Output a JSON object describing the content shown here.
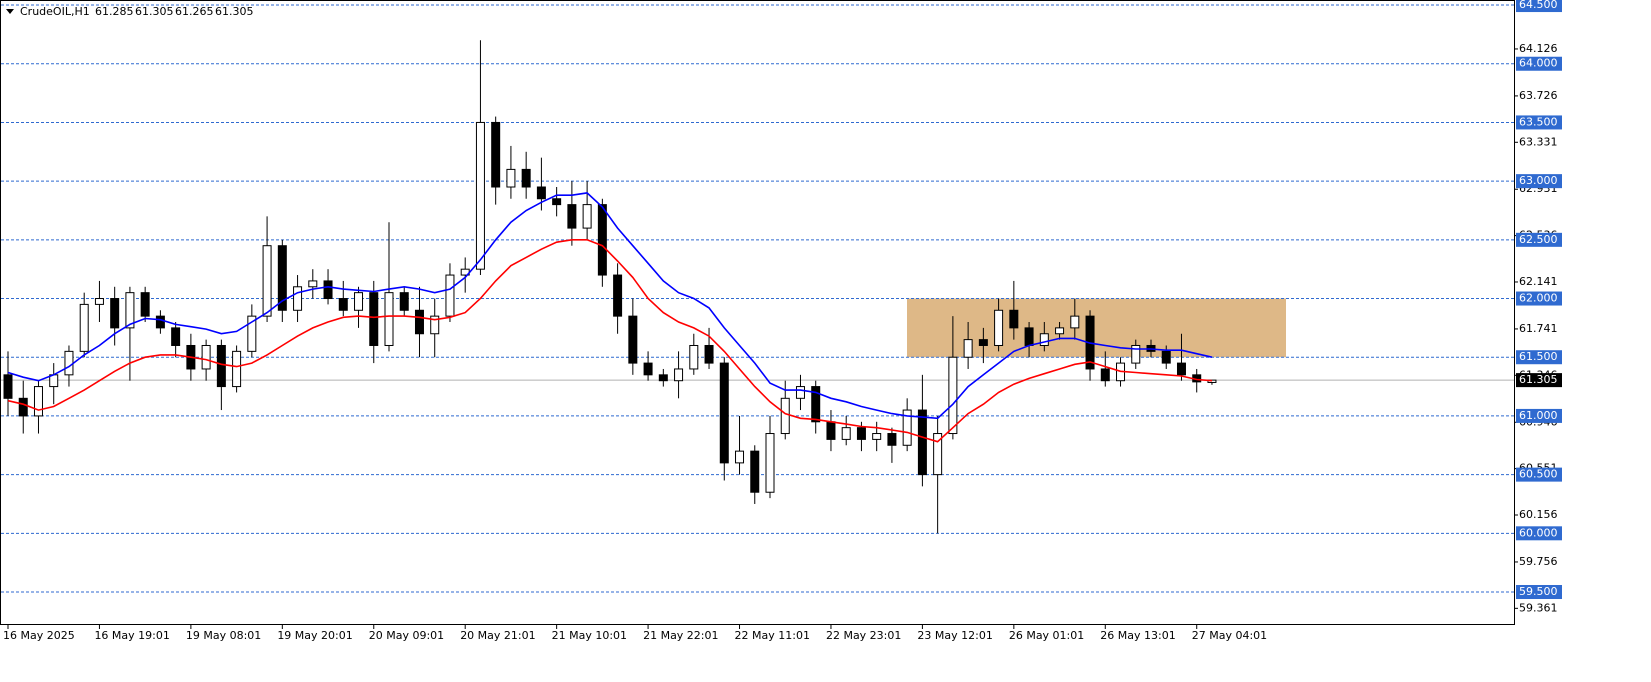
{
  "chart_data": {
    "type": "candlestick",
    "title": "CrudeOIL,H1",
    "categories": [
      "16 May 2025",
      null,
      null,
      null,
      null,
      null,
      "16 May 19:01",
      null,
      null,
      null,
      null,
      null,
      "19 May 08:01",
      null,
      null,
      null,
      null,
      null,
      "19 May 20:01",
      null,
      null,
      null,
      null,
      null,
      "20 May 09:01",
      null,
      null,
      null,
      null,
      null,
      "20 May 21:01",
      null,
      null,
      null,
      null,
      null,
      "21 May 10:01",
      null,
      null,
      null,
      null,
      null,
      "21 May 22:01",
      null,
      null,
      null,
      null,
      null,
      "22 May 11:01",
      null,
      null,
      null,
      null,
      null,
      "22 May 23:01",
      null,
      null,
      null,
      null,
      null,
      "23 May 12:01",
      null,
      null,
      null,
      null,
      null,
      "26 May 01:01",
      null,
      null,
      null,
      null,
      null,
      "26 May 13:01",
      null,
      null,
      null,
      null,
      null,
      "27 May 04:01",
      null
    ],
    "open": [
      61.35,
      61.15,
      61.0,
      61.25,
      61.35,
      61.55,
      61.95,
      62.0,
      61.75,
      62.05,
      61.85,
      61.75,
      61.6,
      61.4,
      61.6,
      61.25,
      61.55,
      61.85,
      62.45,
      61.9,
      62.1,
      62.15,
      62.0,
      61.9,
      62.05,
      61.6,
      62.05,
      61.9,
      61.7,
      61.85,
      62.2,
      62.25,
      63.5,
      62.95,
      63.1,
      62.95,
      62.85,
      62.8,
      62.6,
      62.8,
      62.2,
      61.85,
      61.45,
      61.35,
      61.3,
      61.4,
      61.6,
      61.45,
      60.6,
      60.7,
      60.35,
      60.85,
      61.15,
      61.25,
      60.95,
      60.8,
      60.9,
      60.8,
      60.85,
      60.75,
      61.05,
      60.5,
      60.85,
      61.5,
      61.65,
      61.6,
      61.9,
      61.75,
      61.6,
      61.7,
      61.75,
      61.85,
      61.4,
      61.3,
      61.45,
      61.6,
      61.55,
      61.45,
      61.35,
      61.285
    ],
    "high": [
      61.55,
      61.3,
      61.3,
      61.45,
      61.6,
      62.05,
      62.15,
      62.1,
      62.1,
      62.1,
      61.9,
      61.8,
      61.7,
      61.65,
      61.65,
      61.6,
      61.95,
      62.7,
      62.5,
      62.2,
      62.25,
      62.25,
      62.15,
      62.1,
      62.15,
      62.65,
      62.1,
      62.1,
      62.0,
      62.3,
      62.35,
      64.2,
      63.55,
      63.3,
      63.25,
      63.2,
      62.95,
      63.0,
      63.0,
      62.85,
      62.3,
      62.0,
      61.55,
      61.4,
      61.55,
      61.7,
      61.75,
      61.5,
      61.0,
      60.75,
      61.0,
      61.3,
      61.35,
      61.3,
      61.05,
      61.0,
      60.95,
      60.95,
      60.9,
      61.15,
      61.35,
      61.0,
      61.85,
      61.8,
      61.75,
      62.0,
      62.15,
      61.8,
      61.8,
      61.8,
      62.0,
      61.9,
      61.55,
      61.5,
      61.65,
      61.65,
      61.6,
      61.7,
      61.4,
      61.305
    ],
    "low": [
      61.0,
      60.85,
      60.85,
      61.1,
      61.25,
      61.5,
      61.8,
      61.6,
      61.3,
      61.8,
      61.7,
      61.5,
      61.3,
      61.3,
      61.05,
      61.2,
      61.5,
      61.8,
      61.8,
      61.8,
      62.0,
      61.95,
      61.85,
      61.75,
      61.45,
      61.55,
      61.85,
      61.5,
      61.5,
      61.8,
      62.05,
      62.2,
      62.8,
      62.85,
      62.85,
      62.75,
      62.7,
      62.45,
      62.5,
      62.1,
      61.7,
      61.35,
      61.3,
      61.25,
      61.15,
      61.35,
      61.4,
      60.45,
      60.5,
      60.25,
      60.3,
      60.8,
      61.05,
      60.85,
      60.7,
      60.75,
      60.7,
      60.7,
      60.6,
      60.7,
      60.4,
      60.0,
      60.8,
      61.4,
      61.45,
      61.55,
      61.65,
      61.5,
      61.55,
      61.65,
      61.65,
      61.3,
      61.25,
      61.25,
      61.4,
      61.5,
      61.4,
      61.3,
      61.2,
      61.265
    ],
    "close": [
      61.15,
      61.0,
      61.25,
      61.35,
      61.55,
      61.95,
      62.0,
      61.75,
      62.05,
      61.85,
      61.75,
      61.6,
      61.4,
      61.6,
      61.25,
      61.55,
      61.85,
      62.45,
      61.9,
      62.1,
      62.15,
      62.0,
      61.9,
      62.05,
      61.6,
      62.05,
      61.9,
      61.7,
      61.85,
      62.2,
      62.25,
      63.5,
      62.95,
      63.1,
      62.95,
      62.85,
      62.8,
      62.6,
      62.8,
      62.2,
      61.85,
      61.45,
      61.35,
      61.3,
      61.4,
      61.6,
      61.45,
      60.6,
      60.7,
      60.35,
      60.85,
      61.15,
      61.25,
      60.95,
      60.8,
      60.9,
      60.8,
      60.85,
      60.75,
      61.05,
      60.5,
      60.85,
      61.5,
      61.65,
      61.6,
      61.9,
      61.75,
      61.6,
      61.7,
      61.75,
      61.85,
      61.4,
      61.3,
      61.45,
      61.6,
      61.55,
      61.45,
      61.35,
      61.29,
      61.305
    ],
    "series": [
      {
        "color": "#0000ff",
        "values": [
          61.37,
          61.33,
          61.3,
          61.35,
          61.42,
          61.52,
          61.6,
          61.7,
          61.78,
          61.83,
          61.82,
          61.78,
          61.76,
          61.74,
          61.7,
          61.72,
          61.8,
          61.88,
          61.98,
          62.05,
          62.08,
          62.1,
          62.08,
          62.07,
          62.06,
          62.08,
          62.1,
          62.08,
          62.05,
          62.08,
          62.18,
          62.33,
          62.5,
          62.65,
          62.75,
          62.82,
          62.88,
          62.88,
          62.9,
          62.78,
          62.6,
          62.45,
          62.3,
          62.15,
          62.05,
          62.0,
          61.92,
          61.75,
          61.6,
          61.45,
          61.28,
          61.22,
          61.22,
          61.2,
          61.15,
          61.12,
          61.08,
          61.05,
          61.02,
          61.0,
          60.99,
          60.98,
          61.1,
          61.25,
          61.35,
          61.45,
          61.55,
          61.6,
          61.63,
          61.66,
          61.66,
          61.62,
          61.6,
          61.58,
          61.57,
          61.57,
          61.56,
          61.56,
          61.53,
          61.5
        ]
      },
      {
        "color": "#ff0000",
        "values": [
          61.13,
          61.1,
          61.05,
          61.08,
          61.15,
          61.22,
          61.3,
          61.38,
          61.45,
          61.5,
          61.52,
          61.52,
          61.5,
          61.48,
          61.44,
          61.42,
          61.45,
          61.52,
          61.6,
          61.68,
          61.75,
          61.8,
          61.84,
          61.85,
          61.84,
          61.85,
          61.85,
          61.84,
          61.82,
          61.84,
          61.88,
          62.0,
          62.15,
          62.28,
          62.35,
          62.42,
          62.48,
          62.5,
          62.5,
          62.45,
          62.32,
          62.18,
          62.0,
          61.88,
          61.8,
          61.75,
          61.68,
          61.55,
          61.4,
          61.25,
          61.12,
          61.02,
          60.98,
          60.97,
          60.95,
          60.93,
          60.91,
          60.9,
          60.88,
          60.86,
          60.82,
          60.78,
          60.9,
          61.02,
          61.1,
          61.2,
          61.27,
          61.32,
          61.36,
          61.4,
          61.44,
          61.46,
          61.42,
          61.38,
          61.37,
          61.36,
          61.35,
          61.34,
          61.31,
          61.3
        ]
      }
    ],
    "ylim": [
      59.219,
      64.543
    ],
    "yticks": [
      64.126,
      63.726,
      63.331,
      62.931,
      62.536,
      62.141,
      61.741,
      61.346,
      60.946,
      60.551,
      60.156,
      59.756,
      59.361
    ],
    "levels": [
      {
        "value": 64.5,
        "label": "64.500"
      },
      {
        "value": 64.0,
        "label": "64.000"
      },
      {
        "value": 63.5,
        "label": "63.500"
      },
      {
        "value": 63.0,
        "label": "63.000"
      },
      {
        "value": 62.5,
        "label": "62.500"
      },
      {
        "value": 62.0,
        "label": "62.000"
      },
      {
        "value": 61.5,
        "label": "61.500"
      },
      {
        "value": 61.0,
        "label": "61.000"
      },
      {
        "value": 60.5,
        "label": "60.500"
      },
      {
        "value": 60.0,
        "label": "60.000"
      },
      {
        "value": 59.5,
        "label": "59.500"
      }
    ],
    "zone": {
      "low": 61.5,
      "high": 62.0,
      "color": "#deb887"
    },
    "up_color": "#ffffff",
    "down_color": "#000000",
    "level_color": "#2f6ad0"
  }
}
